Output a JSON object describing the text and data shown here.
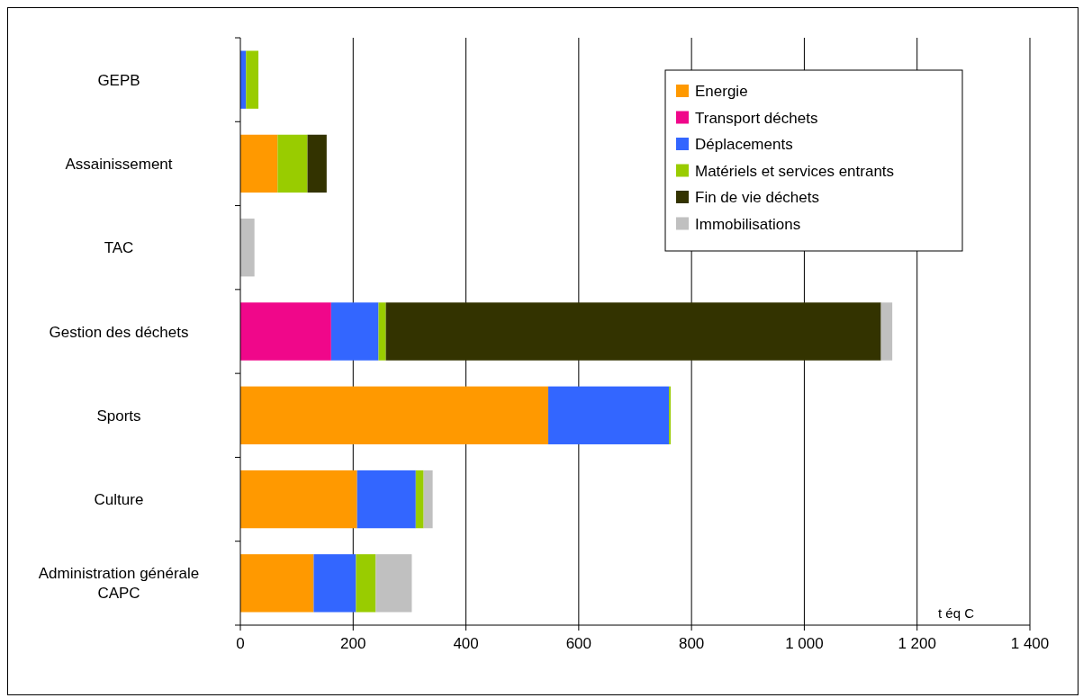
{
  "chart_data": {
    "type": "bar",
    "orientation": "horizontal",
    "stacked": true,
    "xlabel": "t éq C",
    "categories": [
      "GEPB",
      "Assainissement",
      "TAC",
      "Gestion des déchets",
      "Sports",
      "Culture",
      "Administration générale\nCAPC"
    ],
    "series": [
      {
        "name": "Energie",
        "color": "#ff9900",
        "values": [
          null,
          66,
          null,
          null,
          546,
          207,
          130
        ]
      },
      {
        "name": "Transport déchets",
        "color": "#f0078a",
        "values": [
          null,
          null,
          null,
          161,
          null,
          null,
          null
        ]
      },
      {
        "name": "Déplacements",
        "color": "#3366ff",
        "values": [
          10,
          null,
          null,
          84,
          214,
          104,
          75
        ]
      },
      {
        "name": "Matériels et services entrants",
        "color": "#99cc00",
        "values": [
          22,
          53,
          null,
          13,
          3,
          14,
          35
        ]
      },
      {
        "name": "Fin de vie déchets",
        "color": "#333300",
        "values": [
          null,
          34,
          null,
          878,
          null,
          null,
          null
        ]
      },
      {
        "name": "Immobilisations",
        "color": "#c0c0c0",
        "values": [
          null,
          null,
          25,
          20,
          null,
          16,
          64
        ]
      }
    ],
    "xlim": [
      0,
      1400
    ],
    "xticks": [
      0,
      200,
      400,
      600,
      800,
      {
        "value": 1000,
        "label": "1 000"
      },
      {
        "value": 1200,
        "label": "1 200"
      },
      {
        "value": 1400,
        "label": "1 400"
      }
    ],
    "grid": "x",
    "legend": "top right"
  }
}
